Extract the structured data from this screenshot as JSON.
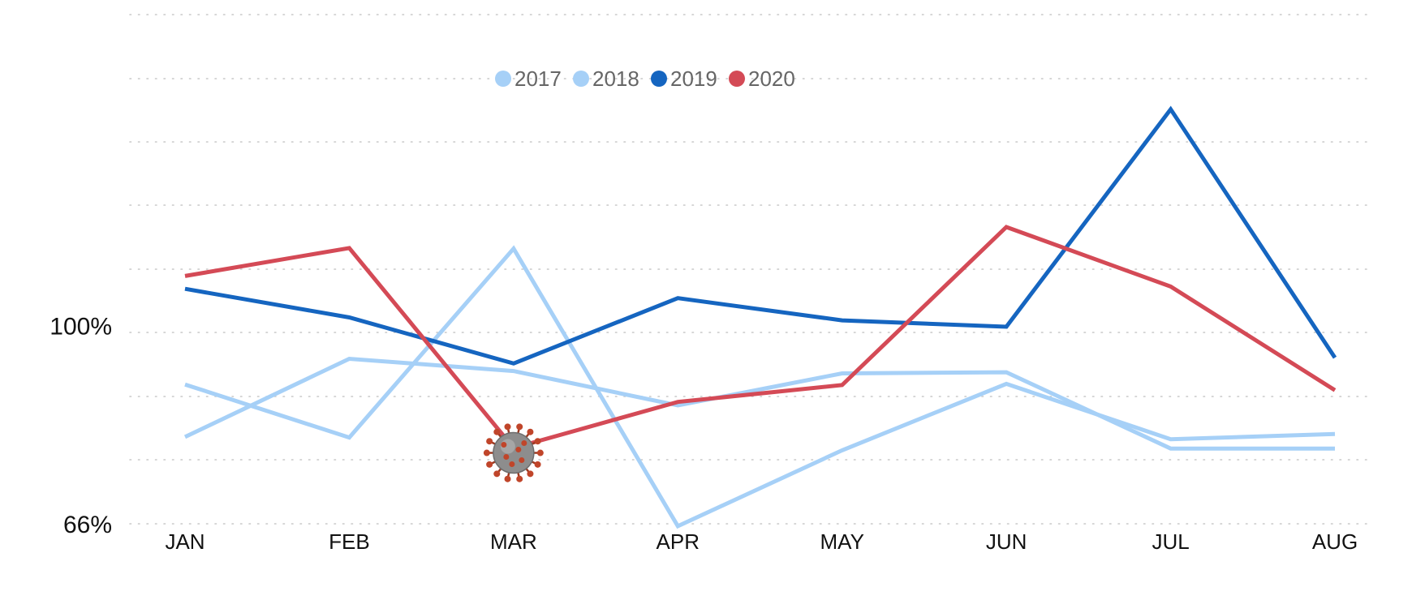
{
  "chart_data": {
    "type": "line",
    "title": "",
    "xlabel": "",
    "ylabel": "",
    "categories": [
      "JAN",
      "FEB",
      "MAR",
      "APR",
      "MAY",
      "JUN",
      "JUL",
      "AUG"
    ],
    "y_ticks": [
      {
        "value": 66,
        "label": "66%"
      },
      {
        "value": 100,
        "label": "100%"
      }
    ],
    "ylim": [
      66,
      120
    ],
    "grid": "horizontal-dotted",
    "legend_position": "top-center",
    "series": [
      {
        "name": "2017",
        "color": "#a6d0f7",
        "values": [
          89.9,
          80.8,
          113.2,
          65.6,
          78.6,
          90.0,
          80.5,
          81.4
        ]
      },
      {
        "name": "2018",
        "color": "#a6d0f7",
        "values": [
          80.9,
          94.3,
          92.2,
          86.3,
          91.8,
          92.0,
          78.9,
          78.9
        ]
      },
      {
        "name": "2019",
        "color": "#1565c0",
        "values": [
          106.3,
          101.4,
          93.5,
          104.7,
          100.9,
          99.8,
          137.1,
          94.5
        ]
      },
      {
        "name": "2020",
        "color": "#d44a56",
        "values": [
          108.5,
          113.3,
          79.0,
          86.9,
          89.8,
          116.9,
          106.7,
          88.9
        ]
      }
    ],
    "annotations": [
      {
        "type": "virus-icon",
        "category": "MAR",
        "series": "2020"
      }
    ]
  }
}
